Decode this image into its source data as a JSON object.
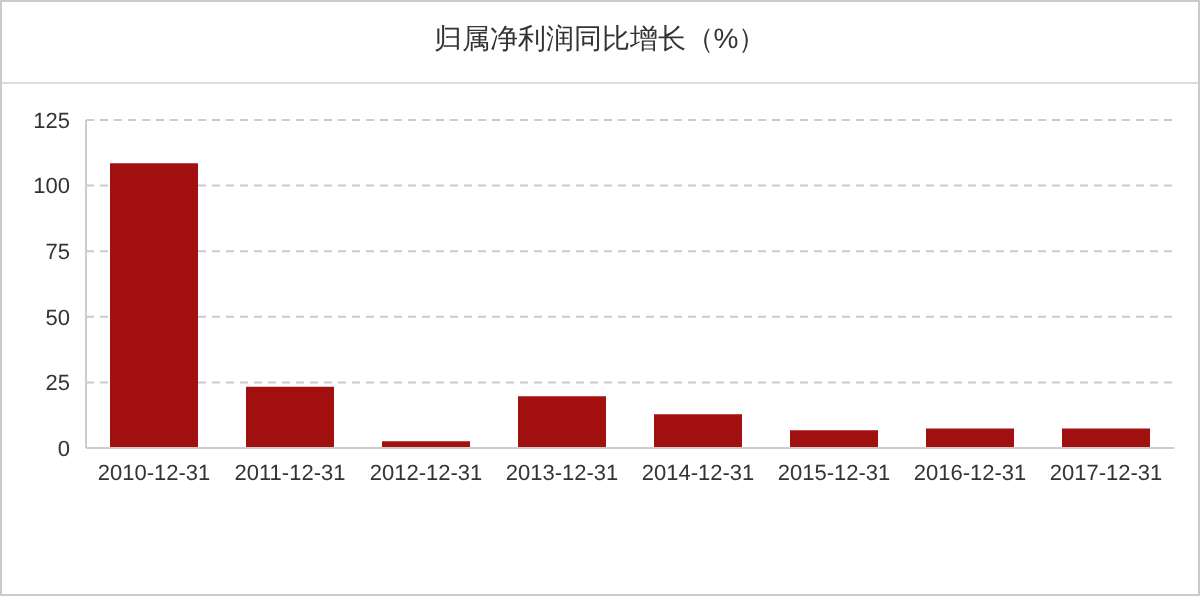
{
  "chart_data": {
    "type": "bar",
    "title": "归属净利润同比增长（%）",
    "categories": [
      "2010-12-31",
      "2011-12-31",
      "2012-12-31",
      "2013-12-31",
      "2014-12-31",
      "2015-12-31",
      "2016-12-31",
      "2017-12-31"
    ],
    "values": [
      108.5,
      23.3,
      2.6,
      19.7,
      12.9,
      6.8,
      7.4,
      7.4
    ],
    "color": "#a31010",
    "ylim": [
      0,
      125
    ],
    "yticks": [
      0,
      25,
      50,
      75,
      100,
      125
    ],
    "grid": "y"
  }
}
